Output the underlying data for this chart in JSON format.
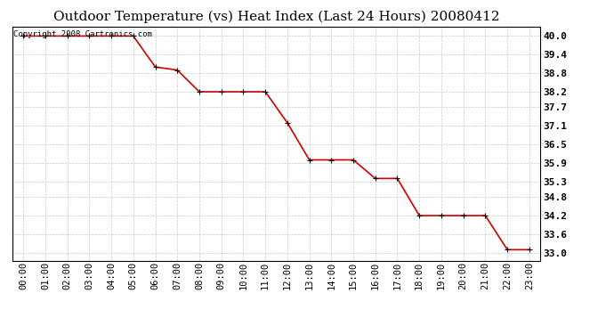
{
  "title": "Outdoor Temperature (vs) Heat Index (Last 24 Hours) 20080412",
  "copyright": "Copyright 2008 Cartronics.com",
  "x_labels": [
    "00:00",
    "01:00",
    "02:00",
    "03:00",
    "04:00",
    "05:00",
    "06:00",
    "07:00",
    "08:00",
    "09:00",
    "10:00",
    "11:00",
    "12:00",
    "13:00",
    "14:00",
    "15:00",
    "16:00",
    "17:00",
    "18:00",
    "19:00",
    "20:00",
    "21:00",
    "22:00",
    "23:00"
  ],
  "y_values": [
    40.0,
    40.0,
    40.0,
    40.0,
    40.0,
    40.0,
    39.0,
    38.9,
    38.2,
    38.2,
    38.2,
    38.2,
    37.2,
    36.0,
    36.0,
    36.0,
    35.4,
    35.4,
    34.2,
    34.2,
    34.2,
    34.2,
    33.1,
    33.1
  ],
  "line_color": "#cc0000",
  "marker_color": "#000000",
  "background_color": "#ffffff",
  "grid_color": "#c8c8c8",
  "ylim_min": 32.75,
  "ylim_max": 40.3,
  "yticks": [
    33.0,
    33.6,
    34.2,
    34.8,
    35.3,
    35.9,
    36.5,
    37.1,
    37.7,
    38.2,
    38.8,
    39.4,
    40.0
  ],
  "title_fontsize": 11,
  "copyright_fontsize": 6.5,
  "tick_fontsize": 7.5,
  "ytick_fontsize": 8
}
